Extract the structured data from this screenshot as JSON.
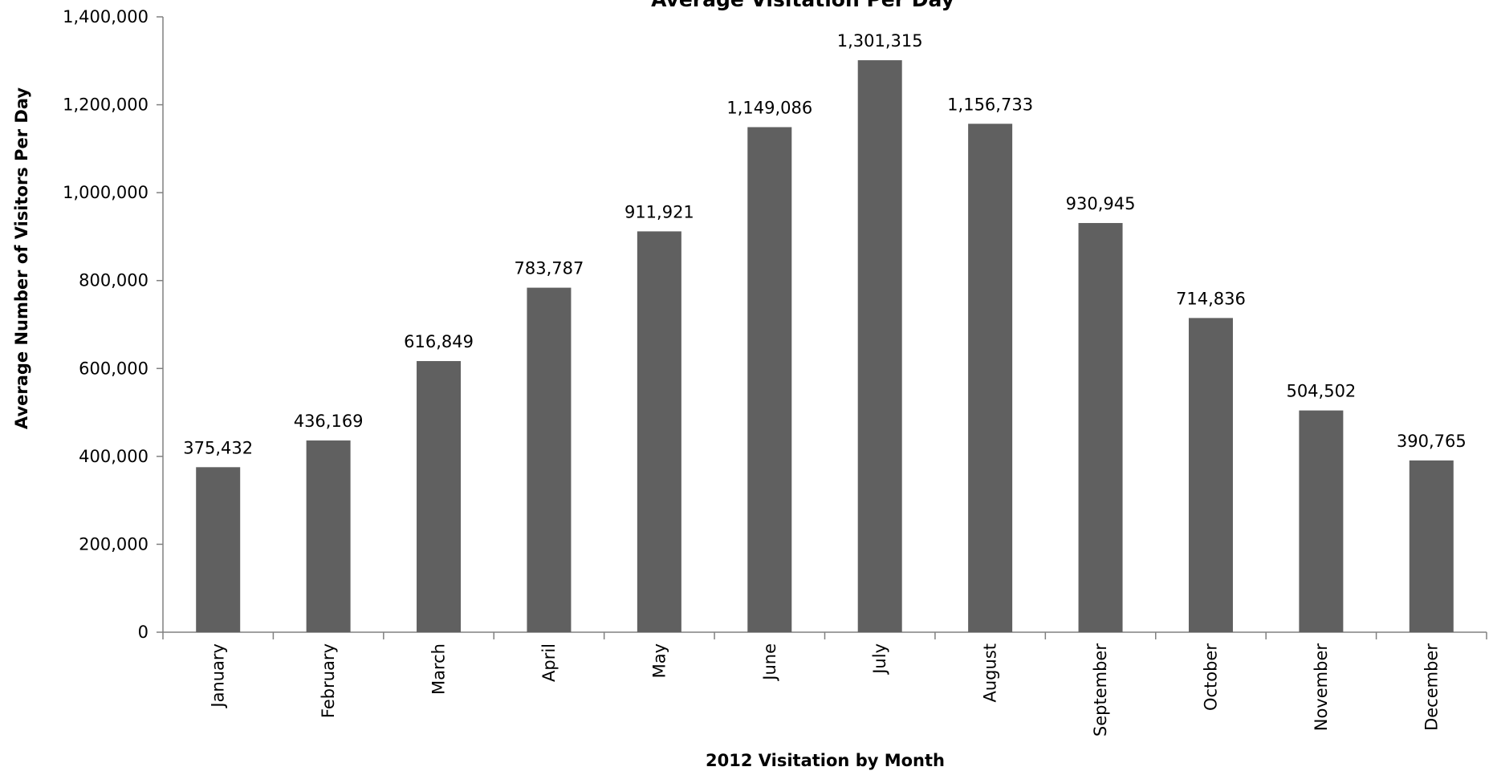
{
  "chart_data": {
    "type": "bar",
    "title": "Average Visitation Per Day",
    "xlabel": "2012 Visitation by Month",
    "ylabel": "Average Number of Visitors Per Day",
    "categories": [
      "January",
      "February",
      "March",
      "April",
      "May",
      "June",
      "July",
      "August",
      "September",
      "October",
      "November",
      "December"
    ],
    "values": [
      375432,
      436169,
      616849,
      783787,
      911921,
      1149086,
      1301315,
      1156733,
      930945,
      714836,
      504502,
      390765
    ],
    "data_labels": [
      "375,432",
      "436,169",
      "616,849",
      "783,787",
      "911,921",
      "1,149,086",
      "1,301,315",
      "1,156,733",
      "930,945",
      "714,836",
      "504,502",
      "390,765"
    ],
    "yticks": [
      0,
      200000,
      400000,
      600000,
      800000,
      1000000,
      1200000,
      1400000
    ],
    "ytick_labels": [
      "0",
      "200,000",
      "400,000",
      "600,000",
      "800,000",
      "1,000,000",
      "1,200,000",
      "1,400,000"
    ],
    "ylim": [
      0,
      1400000
    ],
    "grid": false,
    "legend": "none",
    "bar_color": "#606060"
  }
}
